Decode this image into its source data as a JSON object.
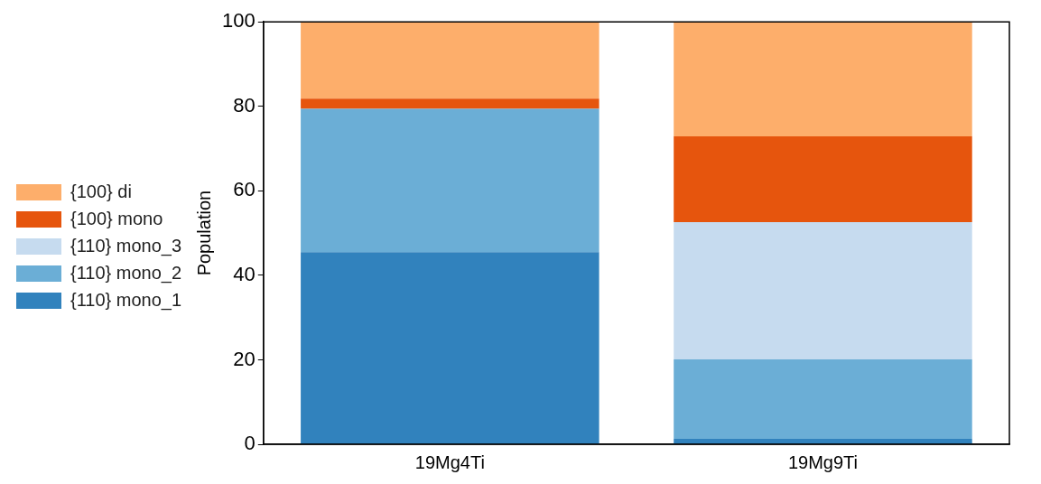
{
  "chart_data": {
    "type": "bar",
    "ylabel": "Population",
    "categories": [
      "19Mg4Ti",
      "19Mg9Ti"
    ],
    "stacked": true,
    "ylim": [
      0,
      100
    ],
    "yticks": [
      0,
      20,
      40,
      60,
      80,
      100
    ],
    "grid": false,
    "legend": "left",
    "series": [
      {
        "name": "{110} mono_1",
        "color": "#3182bd",
        "values": [
          45.5,
          1.3
        ]
      },
      {
        "name": "{110} mono_2",
        "color": "#6baed6",
        "values": [
          33.9,
          18.8
        ]
      },
      {
        "name": "{110} mono_3",
        "color": "#c6dbef",
        "values": [
          0,
          32.5
        ]
      },
      {
        "name": "{100} mono",
        "color": "#e6550d",
        "values": [
          2.4,
          20.3
        ]
      },
      {
        "name": "{100} di",
        "color": "#fdae6b",
        "values": [
          18.2,
          27.1
        ]
      }
    ]
  }
}
